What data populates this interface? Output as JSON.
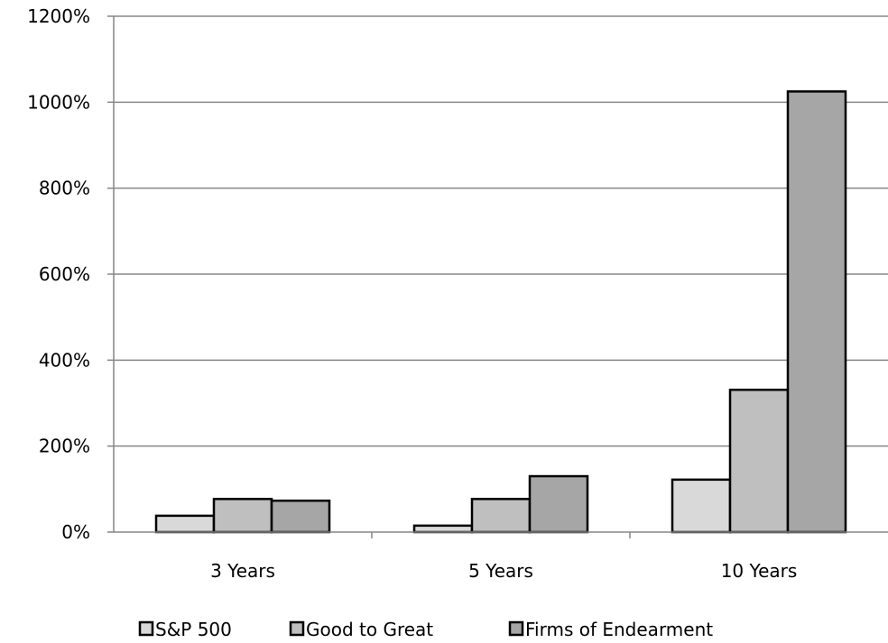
{
  "chart_data": {
    "type": "bar",
    "categories": [
      "3 Years",
      "5 Years",
      "10 Years"
    ],
    "series": [
      {
        "name": "S&P 500",
        "values": [
          38,
          15,
          122
        ],
        "color": "#d9d9d9"
      },
      {
        "name": "Good to Great",
        "values": [
          77,
          77,
          331
        ],
        "color": "#bfbfbf"
      },
      {
        "name": "Firms of Endearment",
        "values": [
          73,
          130,
          1025
        ],
        "color": "#a6a6a6"
      }
    ],
    "yticks": [
      "0%",
      "200%",
      "400%",
      "600%",
      "800%",
      "1000%",
      "1200%"
    ],
    "ylim": [
      0,
      1200
    ],
    "grid": true,
    "legend_position": "bottom",
    "title": "",
    "xlabel": "",
    "ylabel": ""
  }
}
